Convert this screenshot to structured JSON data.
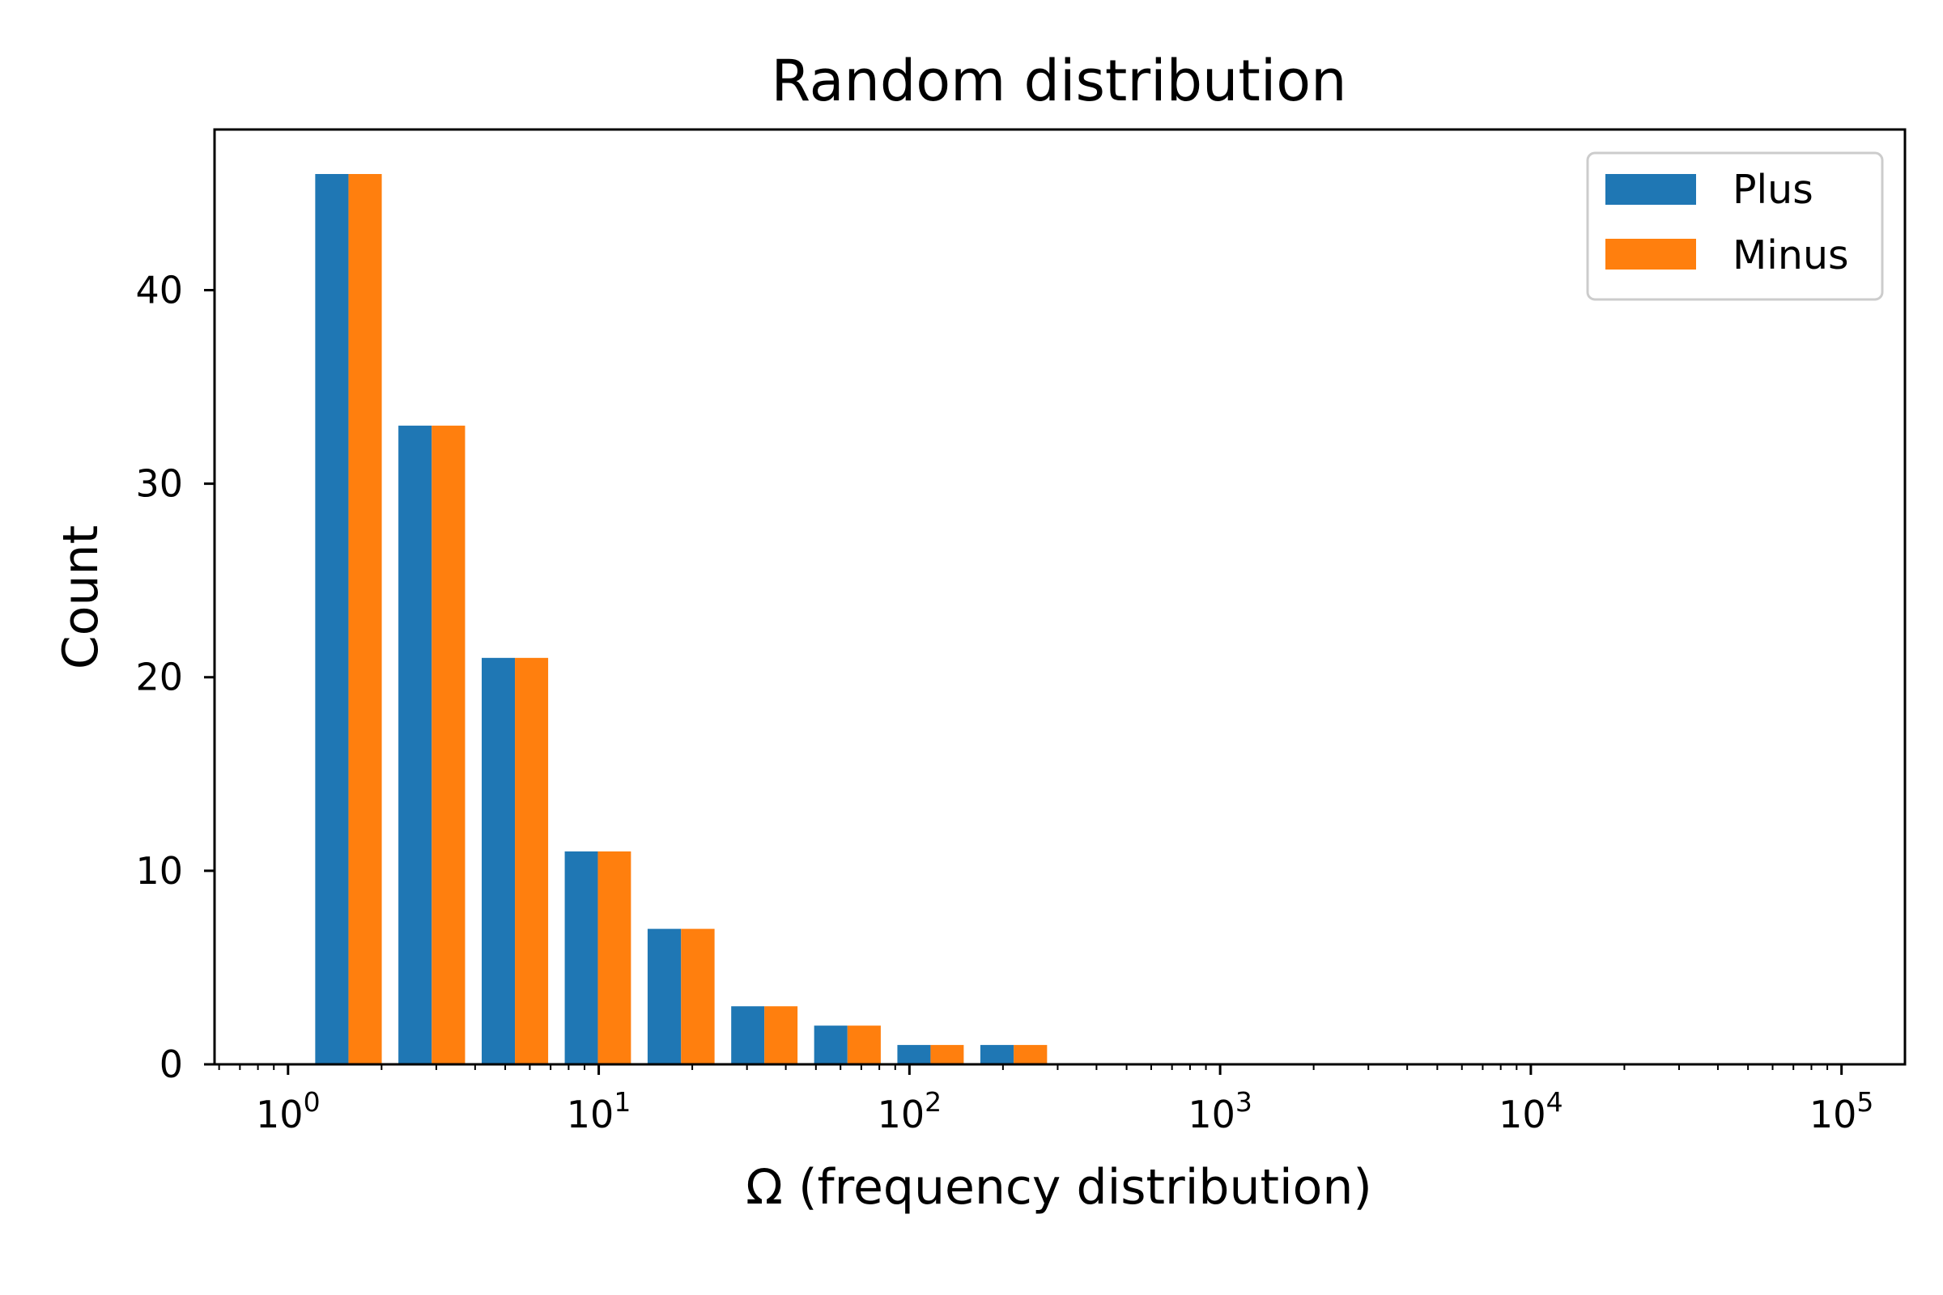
{
  "chart_data": {
    "type": "bar",
    "title": "Random distribution",
    "xlabel": "Ω (frequency distribution)",
    "ylabel": "Count",
    "x_scale": "log",
    "xlim": [
      0.58,
      160000
    ],
    "ylim": [
      0,
      48.3
    ],
    "grid": false,
    "legend_position": "top-right",
    "bin_edges": [
      1.15,
      2.13,
      3.95,
      7.31,
      13.5,
      25.1,
      46.4,
      86.0,
      159,
      295
    ],
    "series": [
      {
        "name": "Plus",
        "color": "#1f77b4",
        "values": [
          46,
          33,
          21,
          11,
          7,
          3,
          2,
          1,
          1
        ]
      },
      {
        "name": "Minus",
        "color": "#ff7f0e",
        "values": [
          46,
          33,
          21,
          11,
          7,
          3,
          2,
          1,
          1
        ]
      }
    ],
    "y_ticks": [
      {
        "value": 0,
        "label": "0"
      },
      {
        "value": 10,
        "label": "10"
      },
      {
        "value": 20,
        "label": "20"
      },
      {
        "value": 30,
        "label": "30"
      },
      {
        "value": 40,
        "label": "40"
      }
    ],
    "x_ticks": [
      {
        "value": 1,
        "base": "10",
        "exp": "0"
      },
      {
        "value": 10,
        "base": "10",
        "exp": "1"
      },
      {
        "value": 100,
        "base": "10",
        "exp": "2"
      },
      {
        "value": 1000,
        "base": "10",
        "exp": "3"
      },
      {
        "value": 10000,
        "base": "10",
        "exp": "4"
      },
      {
        "value": 100000,
        "base": "10",
        "exp": "5"
      }
    ]
  }
}
